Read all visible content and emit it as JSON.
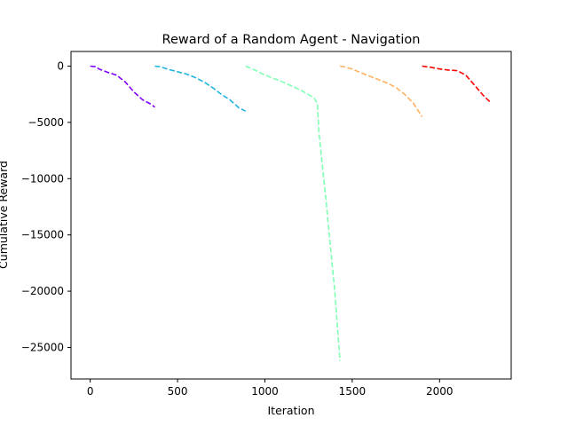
{
  "chart_data": {
    "type": "line",
    "title": "Reward of a Random Agent - Navigation",
    "xlabel": "Iteration",
    "ylabel": "Cumulative Reward",
    "xlim": [
      -110,
      2410
    ],
    "ylim": [
      -27800,
      1300
    ],
    "xticks": [
      0,
      500,
      1000,
      1500,
      2000
    ],
    "yticks": [
      0,
      -5000,
      -10000,
      -15000,
      -20000,
      -25000
    ],
    "grid": false,
    "legend": "none",
    "line_style": "dashed",
    "series": [
      {
        "color": "#8000ff",
        "x": [
          0,
          30,
          50,
          100,
          150,
          200,
          250,
          300,
          350,
          370
        ],
        "y": [
          0,
          -60,
          -250,
          -550,
          -800,
          -1400,
          -2300,
          -3000,
          -3400,
          -3650
        ]
      },
      {
        "color": "#1fb4e0",
        "x": [
          370,
          400,
          450,
          500,
          550,
          600,
          650,
          700,
          750,
          800,
          850,
          890
        ],
        "y": [
          0,
          -50,
          -300,
          -500,
          -700,
          -1000,
          -1400,
          -1900,
          -2500,
          -3000,
          -3700,
          -4000
        ]
      },
      {
        "color": "#80ffb4",
        "x": [
          890,
          950,
          1000,
          1100,
          1200,
          1280,
          1300,
          1310,
          1350,
          1400,
          1430
        ],
        "y": [
          0,
          -400,
          -800,
          -1400,
          -2100,
          -2800,
          -3300,
          -6000,
          -12000,
          -20000,
          -26200
        ]
      },
      {
        "color": "#ffb060",
        "x": [
          1430,
          1450,
          1500,
          1550,
          1600,
          1700,
          1750,
          1800,
          1850,
          1900
        ],
        "y": [
          0,
          -50,
          -250,
          -600,
          -900,
          -1500,
          -1900,
          -2500,
          -3300,
          -4500
        ]
      },
      {
        "color": "#ff0000",
        "x": [
          1900,
          1950,
          2000,
          2050,
          2100,
          2150,
          2200,
          2250,
          2290
        ],
        "y": [
          0,
          -100,
          -250,
          -350,
          -400,
          -800,
          -1700,
          -2600,
          -3200
        ]
      }
    ]
  }
}
